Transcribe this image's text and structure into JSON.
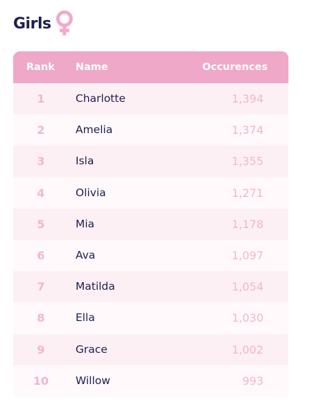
{
  "header": {
    "title": "Girls",
    "icon": "female-symbol-icon",
    "icon_color": "#f3a9c9"
  },
  "table": {
    "header_color": "#efa8c8",
    "columns": {
      "rank": "Rank",
      "name": "Name",
      "occurences": "Occurences"
    },
    "rows": [
      {
        "rank": "1",
        "name": "Charlotte",
        "occurences": "1,394"
      },
      {
        "rank": "2",
        "name": "Amelia",
        "occurences": "1,374"
      },
      {
        "rank": "3",
        "name": "Isla",
        "occurences": "1,355"
      },
      {
        "rank": "4",
        "name": "Olivia",
        "occurences": "1,271"
      },
      {
        "rank": "5",
        "name": "Mia",
        "occurences": "1,178"
      },
      {
        "rank": "6",
        "name": "Ava",
        "occurences": "1,097"
      },
      {
        "rank": "7",
        "name": "Matilda",
        "occurences": "1,054"
      },
      {
        "rank": "8",
        "name": "Ella",
        "occurences": "1,030"
      },
      {
        "rank": "9",
        "name": "Grace",
        "occurences": "1,002"
      },
      {
        "rank": "10",
        "name": "Willow",
        "occurences": "993"
      }
    ]
  }
}
